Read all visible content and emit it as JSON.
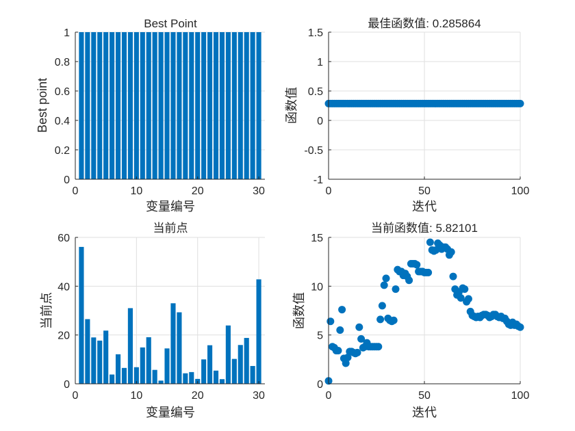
{
  "chart_data": [
    {
      "type": "bar",
      "title": "Best Point",
      "xlabel": "变量编号",
      "ylabel": "Best point",
      "xlim": [
        0,
        31
      ],
      "ylim": [
        0,
        1
      ],
      "xticks": [
        0,
        10,
        20,
        30
      ],
      "yticks": [
        0,
        0.2,
        0.4,
        0.6,
        0.8,
        1
      ],
      "grid": true,
      "color": "#0072BD",
      "categories": [
        1,
        2,
        3,
        4,
        5,
        6,
        7,
        8,
        9,
        10,
        11,
        12,
        13,
        14,
        15,
        16,
        17,
        18,
        19,
        20,
        21,
        22,
        23,
        24,
        25,
        26,
        27,
        28,
        29,
        30
      ],
      "values": [
        1,
        1,
        1,
        1,
        1,
        1,
        1,
        1,
        1,
        1,
        1,
        1,
        1,
        1,
        1,
        1,
        1,
        1,
        1,
        1,
        1,
        1,
        1,
        1,
        1,
        1,
        1,
        1,
        1,
        1
      ]
    },
    {
      "type": "scatter",
      "title": "最佳函数值: 0.285864",
      "xlabel": "迭代",
      "ylabel": "函数值",
      "xlim": [
        0,
        100
      ],
      "ylim": [
        -1,
        1.5
      ],
      "xticks": [
        0,
        50,
        100
      ],
      "yticks": [
        -1,
        -0.5,
        0,
        0.5,
        1,
        1.5
      ],
      "grid": true,
      "color": "#0072BD",
      "x": [
        0,
        1,
        2,
        3,
        4,
        5,
        6,
        7,
        8,
        9,
        10,
        11,
        12,
        13,
        14,
        15,
        16,
        17,
        18,
        19,
        20,
        21,
        22,
        23,
        24,
        25,
        26,
        27,
        28,
        29,
        30,
        31,
        32,
        33,
        34,
        35,
        36,
        37,
        38,
        39,
        40,
        41,
        42,
        43,
        44,
        45,
        46,
        47,
        48,
        49,
        50,
        51,
        52,
        53,
        54,
        55,
        56,
        57,
        58,
        59,
        60,
        61,
        62,
        63,
        64,
        65,
        66,
        67,
        68,
        69,
        70,
        71,
        72,
        73,
        74,
        75,
        76,
        77,
        78,
        79,
        80,
        81,
        82,
        83,
        84,
        85,
        86,
        87,
        88,
        89,
        90,
        91,
        92,
        93,
        94,
        95,
        96,
        97,
        98,
        99,
        100
      ],
      "y": [
        0.285864,
        0.285864,
        0.285864,
        0.285864,
        0.285864,
        0.285864,
        0.285864,
        0.285864,
        0.285864,
        0.285864,
        0.285864,
        0.285864,
        0.285864,
        0.285864,
        0.285864,
        0.285864,
        0.285864,
        0.285864,
        0.285864,
        0.285864,
        0.285864,
        0.285864,
        0.285864,
        0.285864,
        0.285864,
        0.285864,
        0.285864,
        0.285864,
        0.285864,
        0.285864,
        0.285864,
        0.285864,
        0.285864,
        0.285864,
        0.285864,
        0.285864,
        0.285864,
        0.285864,
        0.285864,
        0.285864,
        0.285864,
        0.285864,
        0.285864,
        0.285864,
        0.285864,
        0.285864,
        0.285864,
        0.285864,
        0.285864,
        0.285864,
        0.285864,
        0.285864,
        0.285864,
        0.285864,
        0.285864,
        0.285864,
        0.285864,
        0.285864,
        0.285864,
        0.285864,
        0.285864,
        0.285864,
        0.285864,
        0.285864,
        0.285864,
        0.285864,
        0.285864,
        0.285864,
        0.285864,
        0.285864,
        0.285864,
        0.285864,
        0.285864,
        0.285864,
        0.285864,
        0.285864,
        0.285864,
        0.285864,
        0.285864,
        0.285864,
        0.285864,
        0.285864,
        0.285864,
        0.285864,
        0.285864,
        0.285864,
        0.285864,
        0.285864,
        0.285864,
        0.285864,
        0.285864,
        0.285864,
        0.285864,
        0.285864,
        0.285864,
        0.285864,
        0.285864,
        0.285864,
        0.285864,
        0.285864,
        0.285864
      ]
    },
    {
      "type": "bar",
      "title": "当前点",
      "xlabel": "变量编号",
      "ylabel": "当前点",
      "xlim": [
        0,
        31
      ],
      "ylim": [
        0,
        60
      ],
      "xticks": [
        0,
        10,
        20,
        30
      ],
      "yticks": [
        0,
        20,
        40,
        60
      ],
      "grid": true,
      "color": "#0072BD",
      "categories": [
        1,
        2,
        3,
        4,
        5,
        6,
        7,
        8,
        9,
        10,
        11,
        12,
        13,
        14,
        15,
        16,
        17,
        18,
        19,
        20,
        21,
        22,
        23,
        24,
        25,
        26,
        27,
        28,
        29,
        30
      ],
      "values": [
        56.1,
        26.5,
        19,
        17.7,
        21.8,
        3.8,
        12.1,
        6.5,
        31,
        6.8,
        14.9,
        19.1,
        5.7,
        1.3,
        14.5,
        33,
        29.3,
        4.3,
        4.8,
        2,
        10,
        15.8,
        5.4,
        1.9,
        23.9,
        10.2,
        15.9,
        18.8,
        7.3,
        42.8
      ]
    },
    {
      "type": "scatter",
      "title": "当前函数值: 5.82101",
      "xlabel": "迭代",
      "ylabel": "函数值",
      "xlim": [
        0,
        100
      ],
      "ylim": [
        0,
        15
      ],
      "xticks": [
        0,
        50,
        100
      ],
      "yticks": [
        0,
        5,
        10,
        15
      ],
      "grid": true,
      "color": "#0072BD",
      "x": [
        0,
        1,
        2,
        3,
        4,
        5,
        6,
        7,
        8,
        9,
        10,
        11,
        12,
        13,
        14,
        15,
        16,
        17,
        18,
        19,
        20,
        21,
        22,
        23,
        24,
        25,
        26,
        27,
        28,
        29,
        30,
        31,
        32,
        33,
        34,
        35,
        36,
        37,
        38,
        39,
        40,
        41,
        42,
        43,
        44,
        45,
        46,
        47,
        48,
        49,
        50,
        51,
        52,
        53,
        54,
        55,
        56,
        57,
        58,
        59,
        60,
        61,
        62,
        63,
        64,
        65,
        66,
        67,
        68,
        69,
        70,
        71,
        72,
        73,
        74,
        75,
        76,
        77,
        78,
        79,
        80,
        81,
        82,
        83,
        84,
        85,
        86,
        87,
        88,
        89,
        90,
        91,
        92,
        93,
        94,
        95,
        96,
        97,
        98,
        99,
        100
      ],
      "y": [
        0.3,
        6.4,
        3.8,
        3.7,
        3.4,
        3.4,
        5.5,
        7.6,
        2.6,
        2.1,
        2.7,
        3.3,
        3.3,
        3.2,
        3.1,
        3.2,
        5.8,
        4.6,
        3.7,
        3.8,
        4.2,
        3.8,
        3.8,
        3.8,
        3.8,
        3.8,
        3.8,
        6.6,
        8,
        10.1,
        10.8,
        6.7,
        6.5,
        6.4,
        6.5,
        9.7,
        11.7,
        11.5,
        11.5,
        11.1,
        11.3,
        11,
        10.6,
        12.3,
        12.3,
        12.3,
        12.2,
        11.5,
        11.5,
        11.5,
        11.4,
        11.4,
        11.4,
        14.5,
        13.7,
        13.6,
        13.7,
        14.4,
        14.2,
        13.8,
        14,
        14,
        13.8,
        13.2,
        13.5,
        11,
        9.7,
        9.1,
        9.4,
        8.8,
        9.8,
        9.7,
        8.4,
        8.7,
        7.4,
        7,
        6.9,
        6.8,
        6.9,
        6.8,
        7.0,
        7.1,
        7.1,
        7.0,
        6.8,
        6.9,
        7.1,
        7.1,
        6.9,
        6.8,
        6.9,
        6.7,
        6.7,
        6.4,
        6.1,
        6.0,
        6.3,
        6.0,
        6.1,
        5.9,
        5.8
      ]
    }
  ]
}
